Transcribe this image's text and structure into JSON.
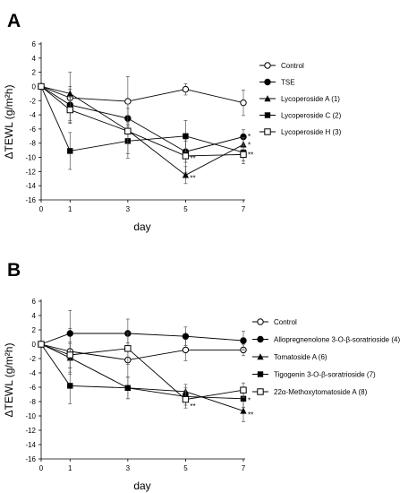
{
  "chart_data": [
    {
      "type": "line",
      "panel": "A",
      "ylabel": "ΔTEWL (g/m²h)",
      "xlabel": "day",
      "x": [
        0,
        1,
        3,
        5,
        7
      ],
      "x_ticks": [
        0,
        1,
        3,
        5,
        7
      ],
      "ylim": [
        -16,
        6
      ],
      "y_ticks": [
        6,
        4,
        2,
        0,
        -2,
        -4,
        -6,
        -8,
        -10,
        -12,
        -14,
        -16
      ],
      "legend_position": "right",
      "series": [
        {
          "name": "Control",
          "marker": "open-circle",
          "values": [
            0,
            -1.6,
            -2.1,
            -0.4,
            -2.3
          ],
          "errors": [
            0,
            3.6,
            3.5,
            0.8,
            1.8
          ]
        },
        {
          "name": "TSE",
          "marker": "filled-circle",
          "values": [
            0,
            -2.6,
            -4.5,
            -9.2,
            -7.1
          ],
          "errors": [
            0,
            2.2,
            2.0,
            1.5,
            1.0
          ]
        },
        {
          "name": "Lycoperoside A (1)",
          "marker": "filled-triangle",
          "values": [
            0,
            -1.0,
            -6.2,
            -12.5,
            -8.2
          ],
          "errors": [
            0,
            1.0,
            1.2,
            1.2,
            1.0
          ]
        },
        {
          "name": "Lycoperoside C (2)",
          "marker": "filled-square",
          "values": [
            0,
            -9.1,
            -7.7,
            -7.0,
            -9.3
          ],
          "errors": [
            0,
            2.6,
            2.4,
            2.2,
            1.2
          ]
        },
        {
          "name": "Lycoperoside H (3)",
          "marker": "open-square",
          "values": [
            0,
            -3.3,
            -6.3,
            -9.8,
            -9.6
          ],
          "errors": [
            0,
            1.8,
            3.2,
            2.3,
            1.3
          ]
        }
      ],
      "annotations": [
        {
          "x": 5,
          "y": -10.1,
          "text": "**"
        },
        {
          "x": 5,
          "y": -12.9,
          "text": "**"
        },
        {
          "x": 7,
          "y": -7.0,
          "text": "*"
        },
        {
          "x": 7,
          "y": -8.2,
          "text": "*"
        },
        {
          "x": 7,
          "y": -9.6,
          "text": "**"
        }
      ]
    },
    {
      "type": "line",
      "panel": "B",
      "ylabel": "ΔTEWL (g/m²h)",
      "xlabel": "day",
      "x": [
        0,
        1,
        3,
        5,
        7
      ],
      "x_ticks": [
        0,
        1,
        3,
        5,
        7
      ],
      "ylim": [
        -16,
        6
      ],
      "y_ticks": [
        6,
        4,
        2,
        0,
        -2,
        -4,
        -6,
        -8,
        -10,
        -12,
        -14,
        -16
      ],
      "legend_position": "right",
      "series": [
        {
          "name": "Control",
          "marker": "open-circle",
          "values": [
            0,
            -1.0,
            -2.2,
            -0.8,
            -0.8
          ],
          "errors": [
            0,
            3.2,
            2.4,
            1.5,
            0.8
          ]
        },
        {
          "name": "Allopregnenolone 3-O-β-soratrioside (4)",
          "marker": "filled-circle",
          "values": [
            0,
            1.5,
            1.5,
            1.1,
            0.5
          ],
          "errors": [
            0,
            3.2,
            2.0,
            1.3,
            1.3
          ]
        },
        {
          "name": "Tomatoside A (6)",
          "marker": "filled-triangle",
          "values": [
            0,
            -1.9,
            -6.1,
            -6.6,
            -9.3
          ],
          "errors": [
            0,
            2.0,
            1.5,
            1.0,
            1.5
          ]
        },
        {
          "name": "Tigogenin 3-O-β-soratrioside (7)",
          "marker": "filled-square",
          "values": [
            0,
            -5.8,
            -6.1,
            -7.3,
            -7.6
          ],
          "errors": [
            0,
            2.5,
            1.5,
            1.2,
            1.2
          ]
        },
        {
          "name": "22α-Methoxytomatoside A (8)",
          "marker": "open-square",
          "values": [
            0,
            -1.5,
            -0.6,
            -7.7,
            -6.4
          ],
          "errors": [
            0,
            1.8,
            2.2,
            1.2,
            1.0
          ]
        }
      ],
      "annotations": [
        {
          "x": 5,
          "y": -8.6,
          "text": "**"
        },
        {
          "x": 7,
          "y": -7.8,
          "text": "*"
        },
        {
          "x": 7,
          "y": -9.8,
          "text": "**"
        }
      ]
    }
  ]
}
